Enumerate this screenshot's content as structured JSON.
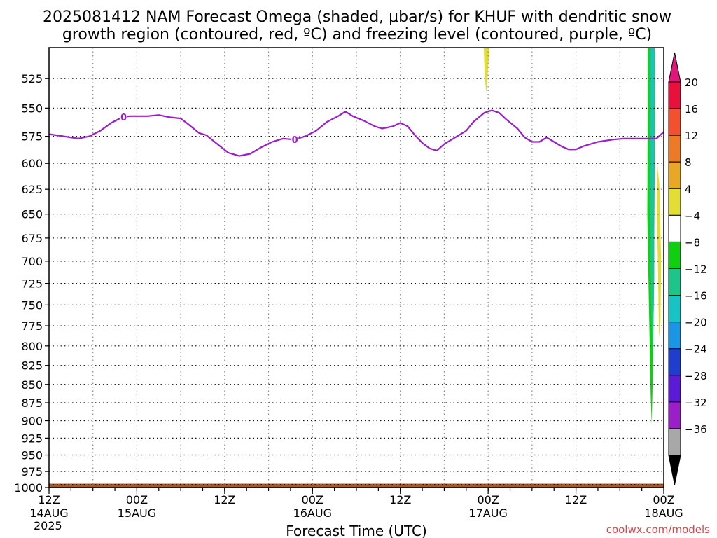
{
  "title_line1": "2025081412 NAM Forecast Omega (shaded, μbar/s) for KHUF with dendritic snow",
  "title_line2": "growth region (contoured, red, ºC) and freezing level (contoured, purple, ºC)",
  "watermark": "coolwx.com/models",
  "chart_data": {
    "type": "area",
    "title": "2025081412 NAM Forecast Omega (shaded, μbar/s) for KHUF with dendritic snow growth region (contoured, red, ºC) and freezing level (contoured, purple, ºC)",
    "xlabel": "Forecast Time (UTC)",
    "x_unit": "hours since 2025-08-14 12Z",
    "xlim": [
      0,
      84
    ],
    "x_ticks": [
      {
        "hour": 0,
        "label": "12Z",
        "date": "14AUG",
        "year": "2025"
      },
      {
        "hour": 12,
        "label": "00Z",
        "date": "15AUG",
        "year": ""
      },
      {
        "hour": 24,
        "label": "12Z",
        "date": "",
        "year": ""
      },
      {
        "hour": 36,
        "label": "00Z",
        "date": "16AUG",
        "year": ""
      },
      {
        "hour": 48,
        "label": "12Z",
        "date": "",
        "year": ""
      },
      {
        "hour": 60,
        "label": "00Z",
        "date": "17AUG",
        "year": ""
      },
      {
        "hour": 72,
        "label": "12Z",
        "date": "",
        "year": ""
      },
      {
        "hour": 84,
        "label": "00Z",
        "date": "18AUG",
        "year": ""
      }
    ],
    "ylabel": "",
    "y_scale": "pressure",
    "ylim": [
      1000,
      500
    ],
    "y_ticks": [
      525,
      550,
      575,
      600,
      625,
      650,
      675,
      700,
      725,
      750,
      775,
      800,
      825,
      850,
      875,
      900,
      925,
      950,
      975,
      1000
    ],
    "grid": true,
    "freezing_level": {
      "color": "#9a1fc6",
      "contour_label": "0",
      "label_hours": [
        10.2,
        33.6
      ],
      "points": [
        [
          0,
          573
        ],
        [
          2,
          575
        ],
        [
          4,
          577
        ],
        [
          5.5,
          575
        ],
        [
          7,
          570
        ],
        [
          8.5,
          563
        ],
        [
          10,
          558
        ],
        [
          11,
          557
        ],
        [
          12,
          557
        ],
        [
          13.5,
          557
        ],
        [
          15,
          556
        ],
        [
          16.5,
          558
        ],
        [
          18,
          559
        ],
        [
          19,
          564
        ],
        [
          20.5,
          572
        ],
        [
          21.5,
          574
        ],
        [
          23,
          582
        ],
        [
          24.5,
          590
        ],
        [
          26,
          593
        ],
        [
          27.5,
          591
        ],
        [
          29,
          585
        ],
        [
          30.5,
          580
        ],
        [
          32,
          577
        ],
        [
          33.5,
          578
        ],
        [
          35,
          575
        ],
        [
          36.5,
          570
        ],
        [
          38,
          562
        ],
        [
          39.5,
          557
        ],
        [
          40.5,
          553
        ],
        [
          41.5,
          557
        ],
        [
          43,
          561
        ],
        [
          44.5,
          566
        ],
        [
          45.5,
          568
        ],
        [
          47,
          566
        ],
        [
          48,
          563
        ],
        [
          49,
          566
        ],
        [
          50,
          574
        ],
        [
          51,
          581
        ],
        [
          52,
          586
        ],
        [
          53,
          588
        ],
        [
          54,
          582
        ],
        [
          55.5,
          576
        ],
        [
          57,
          570
        ],
        [
          58,
          562
        ],
        [
          59.5,
          554
        ],
        [
          60.5,
          552
        ],
        [
          61.5,
          554
        ],
        [
          62.5,
          560
        ],
        [
          64,
          568
        ],
        [
          65,
          576
        ],
        [
          66,
          580
        ],
        [
          67,
          580
        ],
        [
          68,
          576
        ],
        [
          69,
          580
        ],
        [
          70,
          584
        ],
        [
          71,
          587
        ],
        [
          72,
          587
        ],
        [
          73,
          584
        ],
        [
          75,
          580
        ],
        [
          77,
          578
        ],
        [
          78.5,
          577
        ],
        [
          80,
          577
        ],
        [
          82,
          577
        ],
        [
          83,
          577
        ],
        [
          84,
          571
        ]
      ]
    },
    "omega_regions": [
      {
        "label": "yellow streak near 17AUG 00Z",
        "omega_min": 4,
        "omega_max": 8,
        "color": "#e3de33",
        "points": [
          [
            59.4,
            500
          ],
          [
            60.2,
            500
          ],
          [
            59.9,
            525
          ],
          [
            59.75,
            537
          ],
          [
            59.55,
            525
          ]
        ]
      },
      {
        "label": "green band 17Z-18Z",
        "omega_min": -8,
        "omega_max": -4,
        "color": "#10cf10",
        "points": [
          [
            81.8,
            500
          ],
          [
            82.8,
            500
          ],
          [
            82.8,
            560
          ],
          [
            82.65,
            740
          ],
          [
            82.5,
            840
          ],
          [
            82.35,
            905
          ],
          [
            82.2,
            860
          ],
          [
            81.95,
            740
          ],
          [
            81.75,
            650
          ],
          [
            81.8,
            560
          ]
        ]
      },
      {
        "label": "cyan-green core",
        "omega_min": -12,
        "omega_max": -8,
        "color": "#1ec58a",
        "points": [
          [
            82.05,
            500
          ],
          [
            82.75,
            500
          ],
          [
            82.7,
            720
          ],
          [
            82.5,
            820
          ],
          [
            82.25,
            740
          ],
          [
            82.05,
            640
          ]
        ]
      },
      {
        "label": "cyan inner core",
        "omega_min": -16,
        "omega_max": -12,
        "color": "#17c4c4",
        "points": [
          [
            82.3,
            500
          ],
          [
            82.7,
            500
          ],
          [
            82.6,
            620
          ],
          [
            82.45,
            650
          ],
          [
            82.35,
            600
          ]
        ]
      },
      {
        "label": "yellow descending band",
        "omega_min": 4,
        "omega_max": 8,
        "color": "#e3de33",
        "points": [
          [
            83.1,
            600
          ],
          [
            83.4,
            620
          ],
          [
            83.65,
            700
          ],
          [
            83.55,
            770
          ],
          [
            83.35,
            790
          ],
          [
            83.2,
            700
          ],
          [
            83.05,
            650
          ]
        ]
      }
    ],
    "colorbar": {
      "levels": [
        20,
        16,
        12,
        8,
        4,
        -4,
        -8,
        -12,
        -16,
        -20,
        -24,
        -28,
        -32,
        -36
      ],
      "colors": [
        "#e8113b",
        "#f2502e",
        "#ec7a26",
        "#e8a826",
        "#e3de33",
        "#ffffff",
        "#10cf10",
        "#1ec58a",
        "#17c4c4",
        "#1a96e4",
        "#1f3ecf",
        "#5a1ad6",
        "#9a1fc6",
        "#a8a8a8"
      ],
      "top_arrow_color": "#e0167a",
      "bottom_arrow_color": "#000000"
    },
    "terrain_color": "#a35a2a",
    "terrain_top": 994
  }
}
